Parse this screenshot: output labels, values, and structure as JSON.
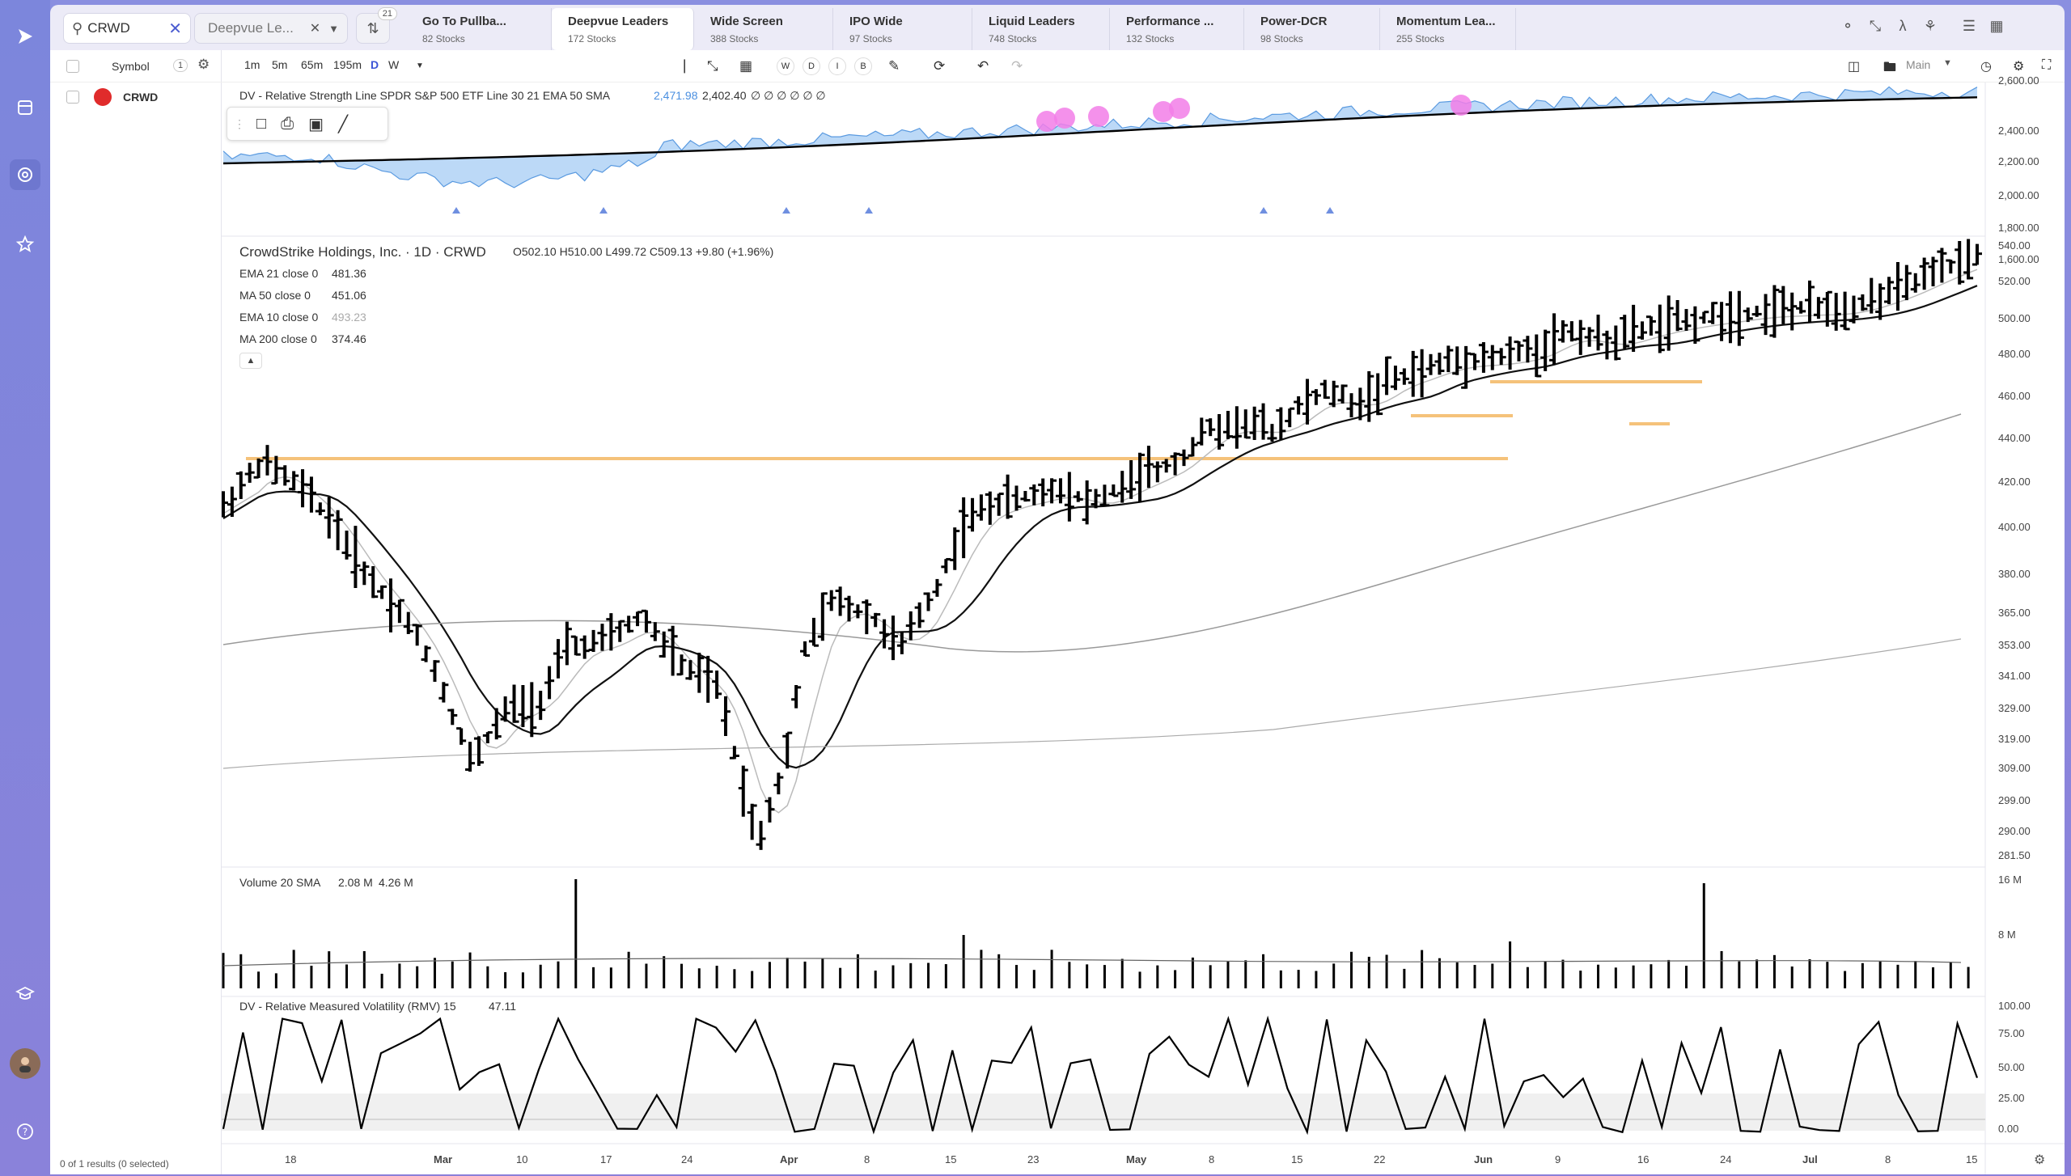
{
  "search": {
    "value": "CRWD",
    "badge": "21"
  },
  "watchlist_select": {
    "value": "Deepvue Le..."
  },
  "tabs": [
    {
      "label": "Go To Pullba...",
      "sub": "82 Stocks"
    },
    {
      "label": "Deepvue Leaders",
      "sub": "172 Stocks"
    },
    {
      "label": "Wide Screen",
      "sub": "388 Stocks"
    },
    {
      "label": "IPO Wide",
      "sub": "97 Stocks"
    },
    {
      "label": "Liquid Leaders",
      "sub": "748 Stocks"
    },
    {
      "label": "Performance ...",
      "sub": "132 Stocks"
    },
    {
      "label": "Power-DCR",
      "sub": "98 Stocks"
    },
    {
      "label": "Momentum Lea...",
      "sub": "255 Stocks"
    }
  ],
  "sidebar": {
    "header": "Symbol",
    "count": "1",
    "row_symbol": "CRWD",
    "footer": "0 of 1 results (0 selected)"
  },
  "toolbar": {
    "intervals": [
      "1m",
      "5m",
      "65m",
      "195m",
      "D",
      "W"
    ],
    "mini": [
      "W",
      "D",
      "I",
      "B"
    ],
    "layout_label": "Main"
  },
  "rs_panel": {
    "title": "DV - Relative Strength Line SPDR S&P 500 ETF Line 30 21 EMA 50 SMA",
    "v1": "2,471.98",
    "v2": "2,402.40",
    "tail": "∅ ∅ ∅ ∅ ∅ ∅",
    "ticks": [
      "2,600.00",
      "2,400.00",
      "2,200.00",
      "2,000.00",
      "1,800.00",
      "1,600.00"
    ]
  },
  "price_panel": {
    "title": "CrowdStrike Holdings, Inc. · 1D · CRWD",
    "ohlc": "O502.10  H510.00  L499.72  C509.13  +9.80 (+1.96%)",
    "indicators": [
      {
        "label": "EMA 21 close 0",
        "value": "481.36"
      },
      {
        "label": "MA 50 close 0",
        "value": "451.06"
      },
      {
        "label": "EMA 10 close 0",
        "value": "493.23"
      },
      {
        "label": "MA 200 close 0",
        "value": "374.46"
      }
    ],
    "ticks": [
      "540.00",
      "520.00",
      "500.00",
      "480.00",
      "460.00",
      "440.00",
      "420.00",
      "400.00",
      "380.00",
      "365.00",
      "353.00",
      "341.00",
      "329.00",
      "319.00",
      "309.00",
      "299.00",
      "290.00",
      "281.50"
    ]
  },
  "volume_panel": {
    "title": "Volume 20 SMA",
    "v1": "2.08 M",
    "v2": "4.26 M",
    "ticks": [
      "16 M",
      "8 M"
    ]
  },
  "rmv_panel": {
    "title": "DV - Relative Measured Volatility (RMV) 15",
    "value": "47.11",
    "ticks": [
      "100.00",
      "75.00",
      "50.00",
      "25.00",
      "0.00"
    ]
  },
  "x_axis": [
    "18",
    "Mar",
    "10",
    "17",
    "24",
    "Apr",
    "8",
    "15",
    "23",
    "May",
    "8",
    "15",
    "22",
    "Jun",
    "9",
    "16",
    "24",
    "Jul",
    "8",
    "15"
  ],
  "colors": {
    "accent": "#7b83d8",
    "rs_fill": "#bcd9f7",
    "breakout": "#f5c27a",
    "signal": "#f27ee8"
  }
}
